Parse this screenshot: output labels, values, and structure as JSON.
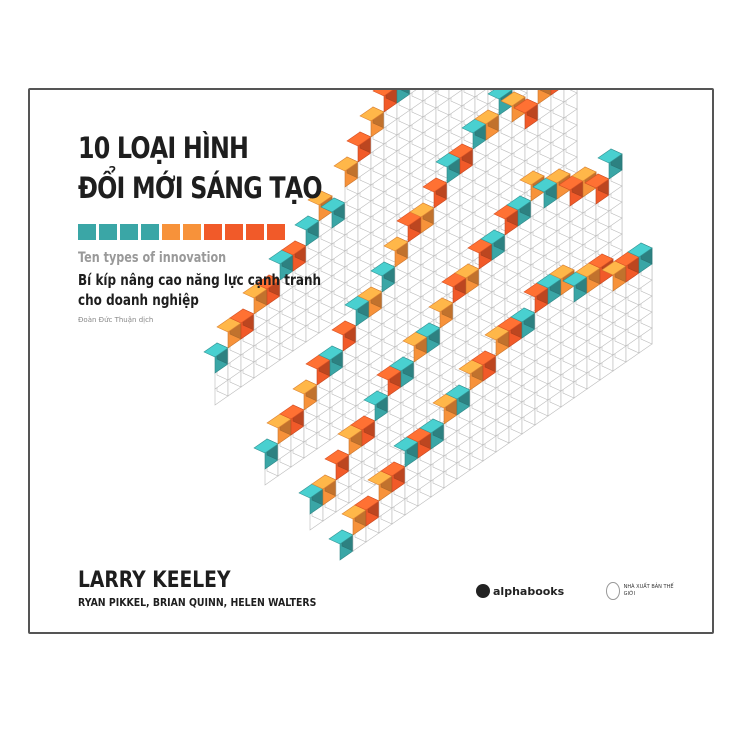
{
  "cover": {
    "title_line1": "10 LOẠI HÌNH",
    "title_line2": "ĐỔI MỚI SÁNG TẠO",
    "strip_colors": [
      "#3aa6a6",
      "#3aa6a6",
      "#3aa6a6",
      "#3aa6a6",
      "#f7923a",
      "#f7923a",
      "#f15a29",
      "#f15a29",
      "#f15a29",
      "#f15a29"
    ],
    "subtitle_en": "Ten types of innovation",
    "subtitle_vi_line1": "Bí kíp nâng cao năng lực cạnh tranh",
    "subtitle_vi_line2": "cho doanh nghiệp",
    "translator": "Đoàn Đức Thuận dịch",
    "author": "LARRY KEELEY",
    "coauthors": "RYAN PIKKEL, BRIAN QUINN, HELEN WALTERS",
    "publisher1": "alphabooks",
    "publisher2": "NHÀ XUẤT BẢN THẾ GIỚI",
    "colors": {
      "teal": "#3aa6a6",
      "orange": "#f7923a",
      "red": "#f15a29",
      "border": "#555555"
    }
  }
}
